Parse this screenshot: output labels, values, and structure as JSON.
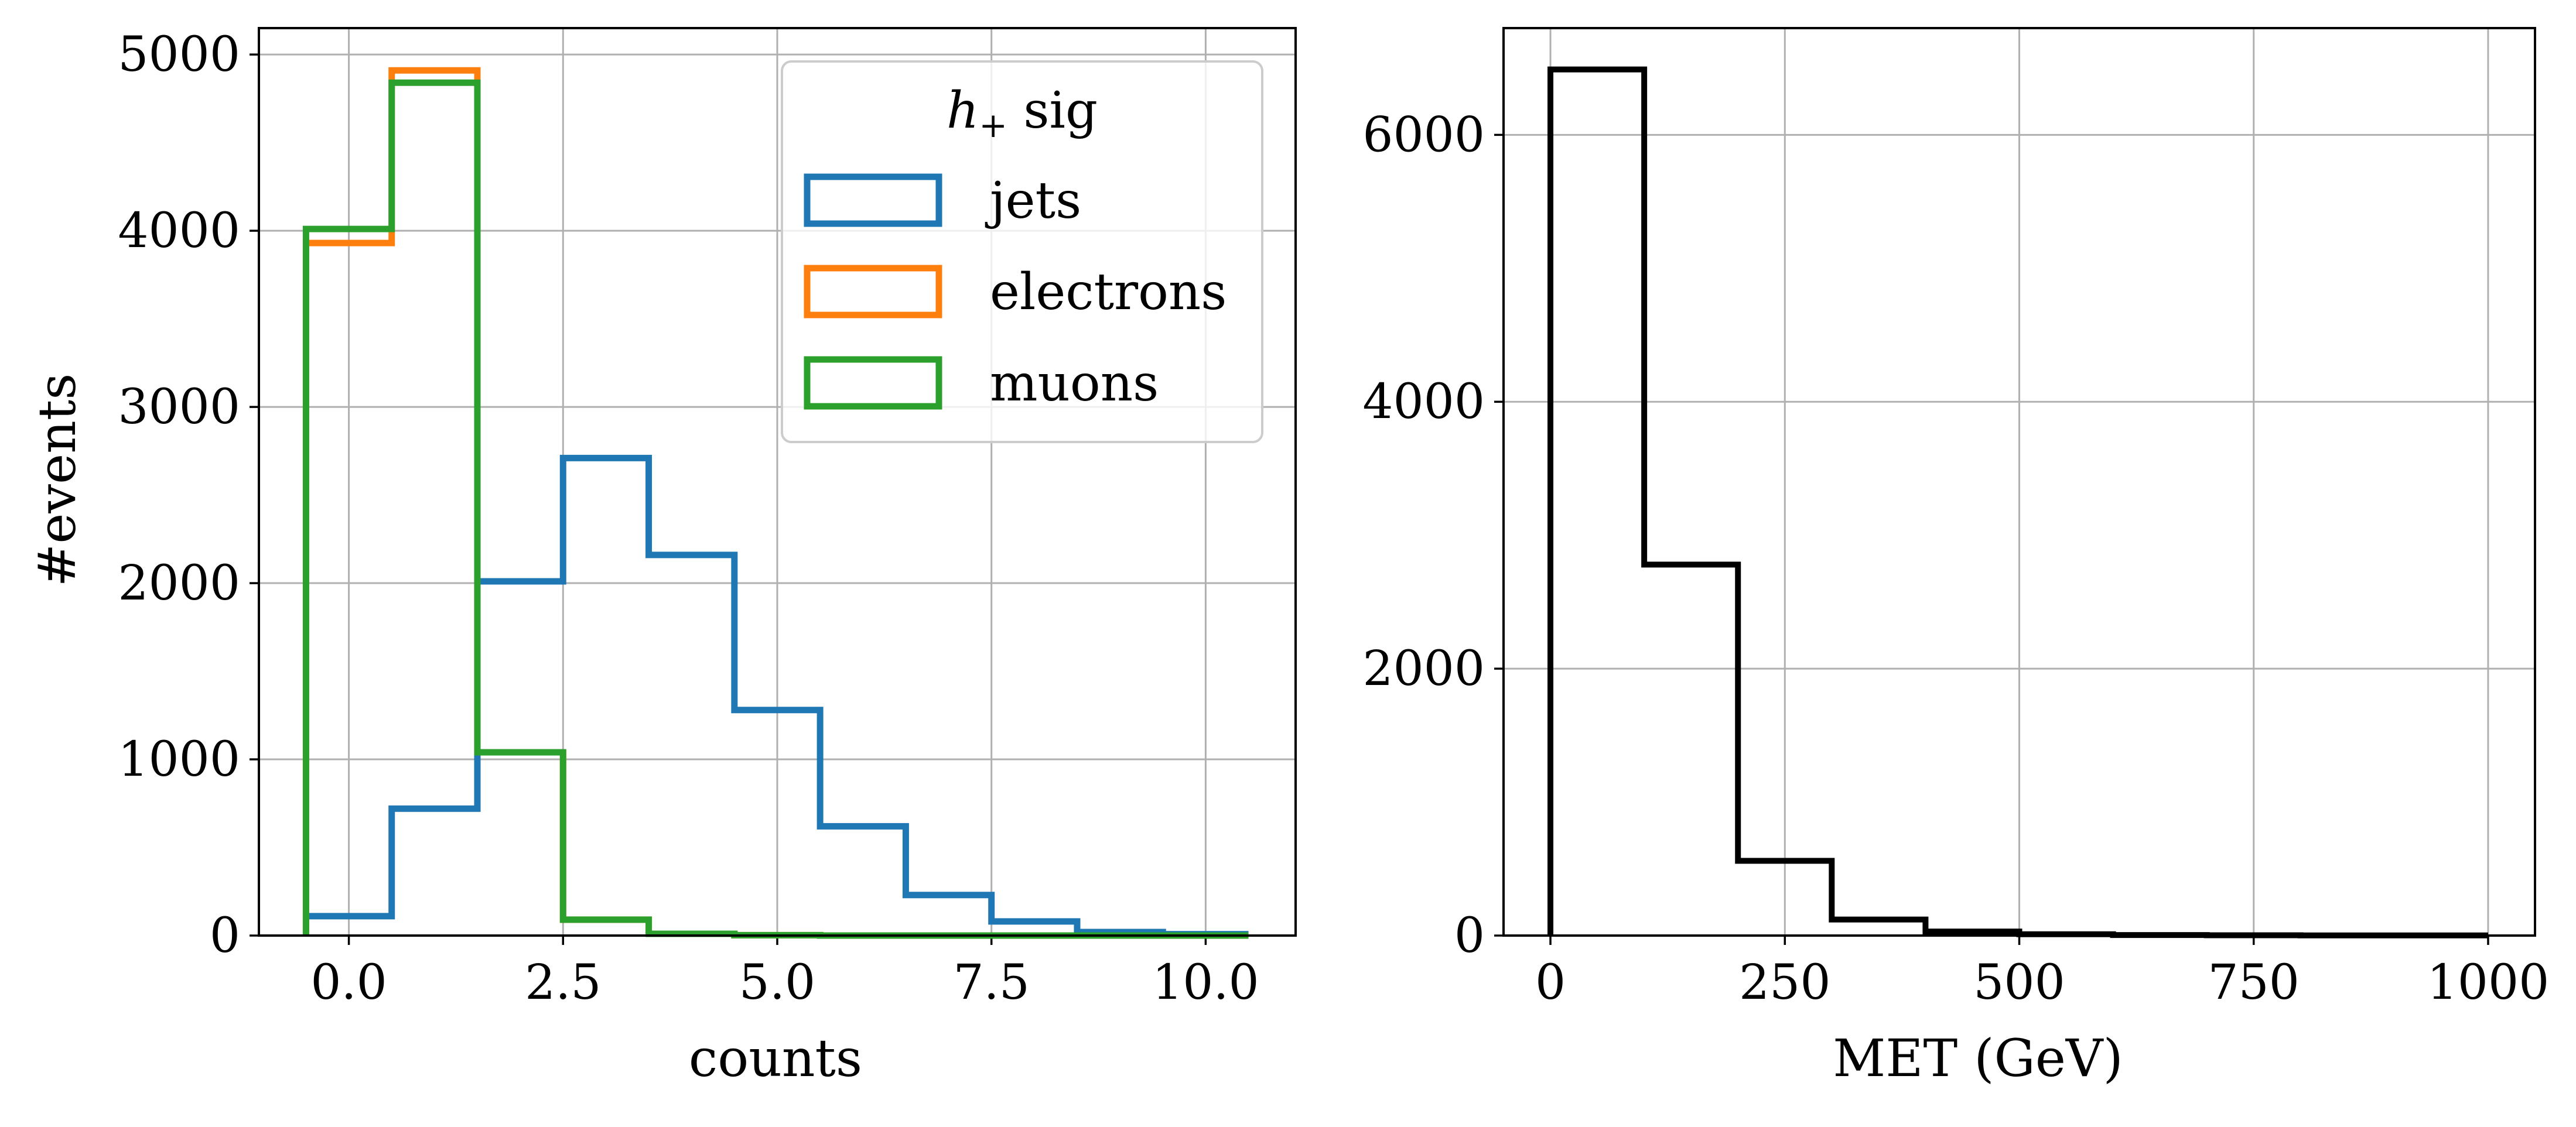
{
  "chart_data": [
    {
      "type": "histogram",
      "title": "",
      "xlabel": "counts",
      "ylabel": "#events",
      "xlim": [
        -1.05,
        11.05
      ],
      "ylim": [
        0,
        5150
      ],
      "grid": true,
      "xticks": [
        0.0,
        2.5,
        5.0,
        7.5,
        10.0
      ],
      "xtick_labels": [
        "0.0",
        "2.5",
        "5.0",
        "7.5",
        "10.0"
      ],
      "yticks": [
        0,
        1000,
        2000,
        3000,
        4000,
        5000
      ],
      "ytick_labels": [
        "0",
        "1000",
        "2000",
        "3000",
        "4000",
        "5000"
      ],
      "bin_edges": [
        -0.5,
        0.5,
        1.5,
        2.5,
        3.5,
        4.5,
        5.5,
        6.5,
        7.5,
        8.5,
        9.5,
        10.5
      ],
      "legend": {
        "title_main": "h",
        "title_sub": "+",
        "title_rest": " sig",
        "placement": "top-right"
      },
      "series": [
        {
          "name": "jets",
          "color": "#1f77b4",
          "values": [
            110,
            720,
            2010,
            2710,
            2160,
            1280,
            620,
            230,
            80,
            20,
            8
          ]
        },
        {
          "name": "electrons",
          "color": "#ff7f0e",
          "values": [
            3930,
            4910,
            1040,
            90,
            10,
            2,
            0,
            0,
            0,
            0,
            0
          ]
        },
        {
          "name": "muons",
          "color": "#2ca02c",
          "values": [
            4010,
            4840,
            1040,
            90,
            10,
            2,
            0,
            0,
            0,
            0,
            0
          ]
        }
      ]
    },
    {
      "type": "histogram",
      "title": "",
      "xlabel": "MET (GeV)",
      "ylabel": "",
      "xlim": [
        -50,
        1050
      ],
      "ylim": [
        0,
        6800
      ],
      "grid": true,
      "xticks": [
        0,
        250,
        500,
        750,
        1000
      ],
      "xtick_labels": [
        "0",
        "250",
        "500",
        "750",
        "1000"
      ],
      "yticks": [
        0,
        2000,
        4000,
        6000
      ],
      "ytick_labels": [
        "0",
        "2000",
        "4000",
        "6000"
      ],
      "bin_edges": [
        0,
        100,
        200,
        300,
        400,
        500,
        600,
        700,
        800,
        900,
        1000
      ],
      "series": [
        {
          "name": "MET",
          "color": "#000000",
          "values": [
            6490,
            2780,
            560,
            120,
            30,
            10,
            4,
            2,
            1,
            1
          ]
        }
      ]
    }
  ]
}
